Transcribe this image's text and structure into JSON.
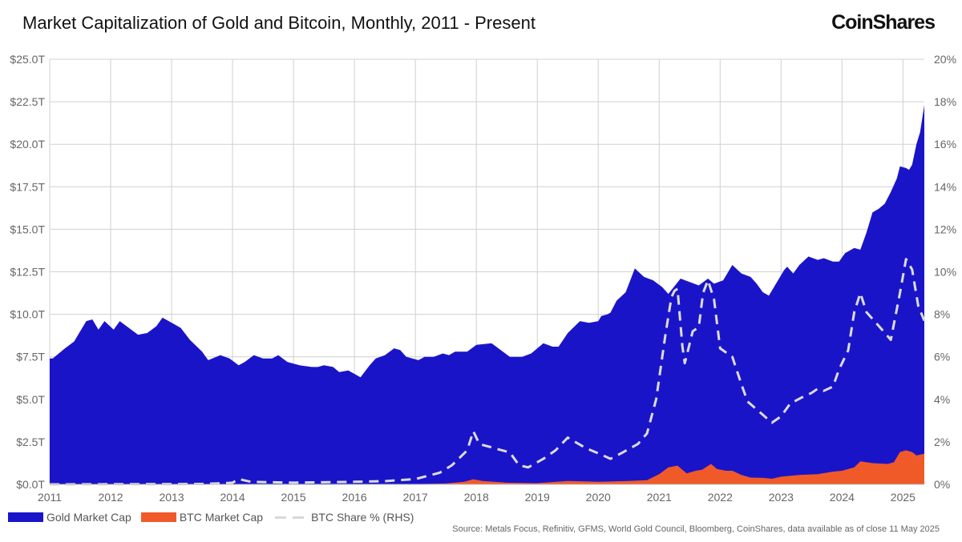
{
  "header": {
    "title": "Market Capitalization of Gold and Bitcoin, Monthly, 2011 - Present",
    "logo_text": "CoinShares"
  },
  "legend": {
    "gold": "Gold Market Cap",
    "btc": "BTC Market Cap",
    "share": "BTC Share % (RHS)"
  },
  "source": "Source: Metals Focus, Refinitiv, GFMS, World Gold Council, Bloomberg, CoinShares, data available as of close 11 May 2025",
  "colors": {
    "gold": "#1a14c9",
    "btc": "#f05a28",
    "share": "#dcdcdc",
    "grid": "#d0d0d0"
  },
  "chart_data": {
    "type": "area",
    "title": "Market Capitalization of Gold and Bitcoin, Monthly, 2011 - Present",
    "x_range": [
      2011.0,
      2025.35
    ],
    "x_ticks": [
      "2011",
      "2012",
      "2013",
      "2014",
      "2015",
      "2016",
      "2017",
      "2018",
      "2019",
      "2020",
      "2021",
      "2022",
      "2023",
      "2024",
      "2025"
    ],
    "y_left_range": [
      0,
      25
    ],
    "y_left_unit": "trillion USD",
    "y_left_ticks": [
      "$0.0T",
      "$2.5T",
      "$5.0T",
      "$7.5T",
      "$10.0T",
      "$12.5T",
      "$15.0T",
      "$17.5T",
      "$20.0T",
      "$22.5T",
      "$25.0T"
    ],
    "y_right_range": [
      0,
      20
    ],
    "y_right_ticks": [
      "0%",
      "2%",
      "4%",
      "6%",
      "8%",
      "10%",
      "12%",
      "14%",
      "16%",
      "18%",
      "20%"
    ],
    "series": [
      {
        "name": "Gold Market Cap",
        "type": "area",
        "axis": "left",
        "points": [
          [
            2011.0,
            7.4
          ],
          [
            2011.05,
            7.4
          ],
          [
            2011.25,
            8.0
          ],
          [
            2011.4,
            8.4
          ],
          [
            2011.6,
            9.6
          ],
          [
            2011.7,
            9.7
          ],
          [
            2011.8,
            9.1
          ],
          [
            2011.9,
            9.6
          ],
          [
            2012.05,
            9.1
          ],
          [
            2012.15,
            9.6
          ],
          [
            2012.3,
            9.2
          ],
          [
            2012.45,
            8.8
          ],
          [
            2012.6,
            8.9
          ],
          [
            2012.75,
            9.3
          ],
          [
            2012.85,
            9.8
          ],
          [
            2013.05,
            9.4
          ],
          [
            2013.15,
            9.2
          ],
          [
            2013.3,
            8.5
          ],
          [
            2013.5,
            7.8
          ],
          [
            2013.6,
            7.3
          ],
          [
            2013.8,
            7.6
          ],
          [
            2013.95,
            7.4
          ],
          [
            2014.1,
            7.0
          ],
          [
            2014.2,
            7.2
          ],
          [
            2014.35,
            7.6
          ],
          [
            2014.5,
            7.4
          ],
          [
            2014.65,
            7.4
          ],
          [
            2014.75,
            7.6
          ],
          [
            2014.9,
            7.2
          ],
          [
            2015.1,
            7.0
          ],
          [
            2015.3,
            6.9
          ],
          [
            2015.4,
            6.9
          ],
          [
            2015.5,
            7.0
          ],
          [
            2015.65,
            6.9
          ],
          [
            2015.75,
            6.6
          ],
          [
            2015.9,
            6.7
          ],
          [
            2016.1,
            6.3
          ],
          [
            2016.25,
            7.0
          ],
          [
            2016.35,
            7.4
          ],
          [
            2016.5,
            7.6
          ],
          [
            2016.65,
            8.0
          ],
          [
            2016.75,
            7.9
          ],
          [
            2016.85,
            7.5
          ],
          [
            2017.05,
            7.3
          ],
          [
            2017.15,
            7.5
          ],
          [
            2017.3,
            7.5
          ],
          [
            2017.45,
            7.7
          ],
          [
            2017.55,
            7.6
          ],
          [
            2017.65,
            7.8
          ],
          [
            2017.85,
            7.8
          ],
          [
            2018.0,
            8.2
          ],
          [
            2018.25,
            8.3
          ],
          [
            2018.4,
            7.9
          ],
          [
            2018.55,
            7.5
          ],
          [
            2018.75,
            7.5
          ],
          [
            2018.9,
            7.7
          ],
          [
            2019.1,
            8.3
          ],
          [
            2019.25,
            8.1
          ],
          [
            2019.35,
            8.1
          ],
          [
            2019.5,
            8.9
          ],
          [
            2019.7,
            9.6
          ],
          [
            2019.85,
            9.5
          ],
          [
            2020.0,
            9.6
          ],
          [
            2020.05,
            9.9
          ],
          [
            2020.15,
            10.0
          ],
          [
            2020.2,
            10.1
          ],
          [
            2020.3,
            10.8
          ],
          [
            2020.45,
            11.3
          ],
          [
            2020.6,
            12.7
          ],
          [
            2020.75,
            12.2
          ],
          [
            2020.9,
            12.0
          ],
          [
            2021.05,
            11.6
          ],
          [
            2021.15,
            11.2
          ],
          [
            2021.35,
            12.1
          ],
          [
            2021.5,
            11.9
          ],
          [
            2021.65,
            11.7
          ],
          [
            2021.8,
            12.1
          ],
          [
            2021.9,
            11.8
          ],
          [
            2022.05,
            12.0
          ],
          [
            2022.2,
            12.9
          ],
          [
            2022.35,
            12.4
          ],
          [
            2022.5,
            12.2
          ],
          [
            2022.6,
            11.8
          ],
          [
            2022.7,
            11.3
          ],
          [
            2022.8,
            11.1
          ],
          [
            2022.9,
            11.7
          ],
          [
            2023.05,
            12.6
          ],
          [
            2023.1,
            12.8
          ],
          [
            2023.2,
            12.4
          ],
          [
            2023.3,
            12.9
          ],
          [
            2023.45,
            13.4
          ],
          [
            2023.6,
            13.2
          ],
          [
            2023.7,
            13.3
          ],
          [
            2023.85,
            13.1
          ],
          [
            2023.95,
            13.1
          ],
          [
            2024.05,
            13.6
          ],
          [
            2024.2,
            13.9
          ],
          [
            2024.3,
            13.8
          ],
          [
            2024.4,
            14.8
          ],
          [
            2024.5,
            16.0
          ],
          [
            2024.6,
            16.2
          ],
          [
            2024.7,
            16.5
          ],
          [
            2024.8,
            17.2
          ],
          [
            2024.9,
            18.0
          ],
          [
            2024.95,
            18.7
          ],
          [
            2025.05,
            18.6
          ],
          [
            2025.1,
            18.5
          ],
          [
            2025.15,
            18.8
          ],
          [
            2025.22,
            20.0
          ],
          [
            2025.28,
            20.7
          ],
          [
            2025.35,
            22.3
          ]
        ]
      },
      {
        "name": "BTC Market Cap",
        "type": "area",
        "axis": "left",
        "points": [
          [
            2011.0,
            0.0
          ],
          [
            2013.0,
            0.0
          ],
          [
            2014.0,
            0.01
          ],
          [
            2015.0,
            0.005
          ],
          [
            2016.0,
            0.01
          ],
          [
            2017.0,
            0.02
          ],
          [
            2017.5,
            0.05
          ],
          [
            2017.8,
            0.15
          ],
          [
            2017.95,
            0.3
          ],
          [
            2018.1,
            0.2
          ],
          [
            2018.5,
            0.1
          ],
          [
            2019.0,
            0.07
          ],
          [
            2019.5,
            0.2
          ],
          [
            2020.0,
            0.15
          ],
          [
            2020.5,
            0.2
          ],
          [
            2020.8,
            0.25
          ],
          [
            2021.0,
            0.6
          ],
          [
            2021.15,
            1.0
          ],
          [
            2021.3,
            1.1
          ],
          [
            2021.45,
            0.65
          ],
          [
            2021.6,
            0.8
          ],
          [
            2021.7,
            0.85
          ],
          [
            2021.85,
            1.2
          ],
          [
            2021.95,
            0.9
          ],
          [
            2022.1,
            0.8
          ],
          [
            2022.2,
            0.8
          ],
          [
            2022.35,
            0.55
          ],
          [
            2022.5,
            0.4
          ],
          [
            2022.7,
            0.38
          ],
          [
            2022.85,
            0.33
          ],
          [
            2023.0,
            0.45
          ],
          [
            2023.3,
            0.55
          ],
          [
            2023.6,
            0.6
          ],
          [
            2023.85,
            0.75
          ],
          [
            2024.0,
            0.8
          ],
          [
            2024.2,
            1.0
          ],
          [
            2024.3,
            1.35
          ],
          [
            2024.5,
            1.25
          ],
          [
            2024.75,
            1.2
          ],
          [
            2024.85,
            1.3
          ],
          [
            2024.95,
            1.9
          ],
          [
            2025.05,
            2.0
          ],
          [
            2025.15,
            1.9
          ],
          [
            2025.22,
            1.7
          ],
          [
            2025.35,
            1.8
          ]
        ]
      },
      {
        "name": "BTC Share % (RHS)",
        "type": "line",
        "axis": "right",
        "points": [
          [
            2011.0,
            0.0
          ],
          [
            2013.5,
            0.02
          ],
          [
            2013.8,
            0.05
          ],
          [
            2014.0,
            0.08
          ],
          [
            2014.1,
            0.25
          ],
          [
            2014.3,
            0.12
          ],
          [
            2015.0,
            0.08
          ],
          [
            2016.0,
            0.12
          ],
          [
            2016.5,
            0.15
          ],
          [
            2017.0,
            0.25
          ],
          [
            2017.4,
            0.55
          ],
          [
            2017.6,
            0.9
          ],
          [
            2017.85,
            1.6
          ],
          [
            2017.95,
            2.5
          ],
          [
            2018.05,
            1.9
          ],
          [
            2018.3,
            1.7
          ],
          [
            2018.55,
            1.5
          ],
          [
            2018.7,
            0.9
          ],
          [
            2018.85,
            0.8
          ],
          [
            2019.1,
            1.2
          ],
          [
            2019.3,
            1.6
          ],
          [
            2019.5,
            2.2
          ],
          [
            2019.8,
            1.7
          ],
          [
            2020.05,
            1.4
          ],
          [
            2020.2,
            1.2
          ],
          [
            2020.4,
            1.5
          ],
          [
            2020.65,
            1.9
          ],
          [
            2020.8,
            2.4
          ],
          [
            2020.95,
            4.0
          ],
          [
            2021.05,
            6.0
          ],
          [
            2021.1,
            7.0
          ],
          [
            2021.2,
            8.8
          ],
          [
            2021.25,
            9.1
          ],
          [
            2021.3,
            9.2
          ],
          [
            2021.38,
            6.5
          ],
          [
            2021.42,
            5.7
          ],
          [
            2021.55,
            7.2
          ],
          [
            2021.65,
            7.4
          ],
          [
            2021.72,
            9.0
          ],
          [
            2021.8,
            9.6
          ],
          [
            2021.9,
            8.7
          ],
          [
            2022.0,
            6.4
          ],
          [
            2022.2,
            6.0
          ],
          [
            2022.35,
            4.7
          ],
          [
            2022.45,
            3.9
          ],
          [
            2022.65,
            3.4
          ],
          [
            2022.85,
            2.9
          ],
          [
            2023.0,
            3.2
          ],
          [
            2023.15,
            3.8
          ],
          [
            2023.35,
            4.1
          ],
          [
            2023.5,
            4.3
          ],
          [
            2023.6,
            4.5
          ],
          [
            2023.7,
            4.4
          ],
          [
            2023.85,
            4.6
          ],
          [
            2023.95,
            5.4
          ],
          [
            2024.1,
            6.3
          ],
          [
            2024.2,
            8.1
          ],
          [
            2024.3,
            9.0
          ],
          [
            2024.4,
            8.1
          ],
          [
            2024.65,
            7.3
          ],
          [
            2024.8,
            6.8
          ],
          [
            2024.95,
            9.0
          ],
          [
            2025.05,
            10.6
          ],
          [
            2025.15,
            10.1
          ],
          [
            2025.25,
            8.4
          ],
          [
            2025.35,
            7.7
          ]
        ]
      }
    ]
  }
}
